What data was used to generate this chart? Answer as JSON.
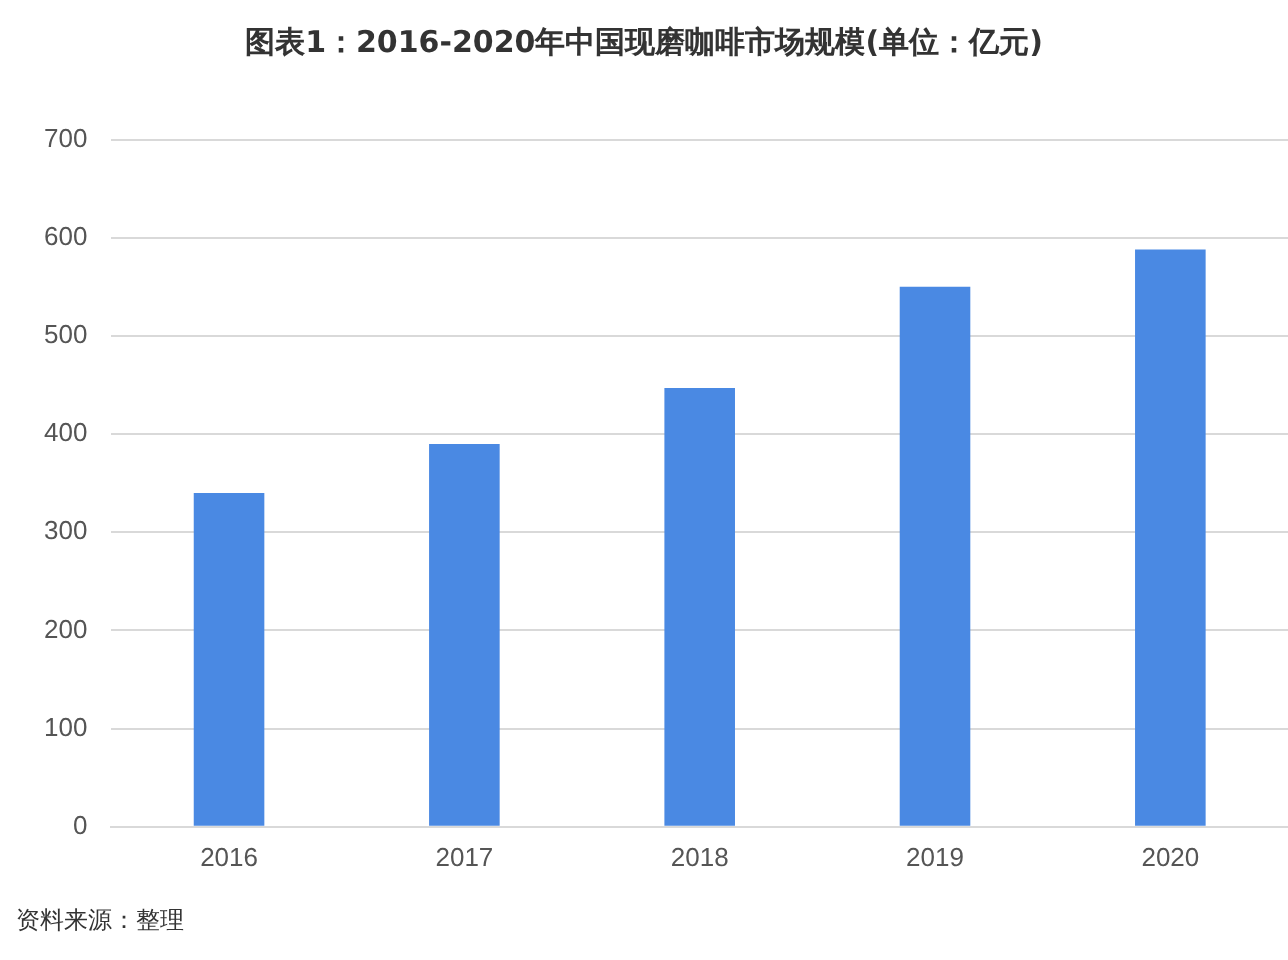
{
  "chart_data": {
    "type": "bar",
    "title": "图表1：2016-2020年中国现磨咖啡市场规模(单位：亿元)",
    "categories": [
      "2016",
      "2017",
      "2018",
      "2019",
      "2020"
    ],
    "values": [
      340,
      390,
      447,
      550,
      588
    ],
    "color": "#4a89e3",
    "ylim": [
      0,
      700
    ],
    "yticks": [
      0,
      100,
      200,
      300,
      400,
      500,
      600,
      700
    ],
    "grid": "y",
    "annotations": [
      "资料来源：整理"
    ]
  }
}
